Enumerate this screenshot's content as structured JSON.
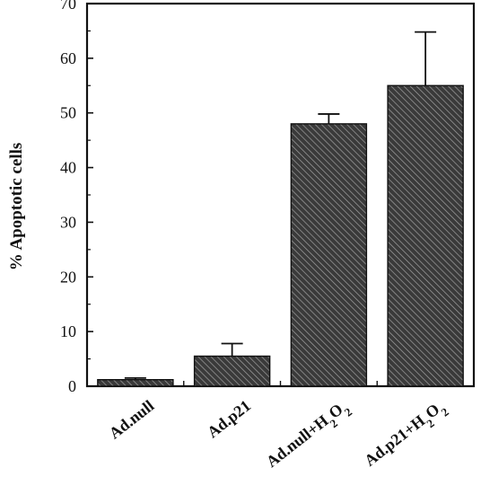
{
  "chart_data": {
    "type": "bar",
    "title": "",
    "xlabel": "",
    "ylabel": "% Apoptotic cells",
    "ylim": [
      0,
      70
    ],
    "yticks": [
      0,
      10,
      20,
      30,
      40,
      50,
      60,
      70
    ],
    "categories": [
      {
        "base": "Ad.null",
        "sub": ""
      },
      {
        "base": "Ad.p21",
        "sub": ""
      },
      {
        "base": "Ad.null+H",
        "sub": "2",
        "mid": "O",
        "sub2": "2"
      },
      {
        "base": "Ad.p21+H",
        "sub": "2",
        "mid": "O",
        "sub2": "2"
      }
    ],
    "values": [
      1.2,
      5.5,
      48,
      55
    ],
    "errors": [
      0.3,
      2.3,
      1.8,
      9.8
    ],
    "grid": false,
    "bar_fill": "hatched",
    "colors": {
      "bar": "#333333",
      "hatch": "#9a9a9a",
      "axis": "#111111"
    }
  }
}
